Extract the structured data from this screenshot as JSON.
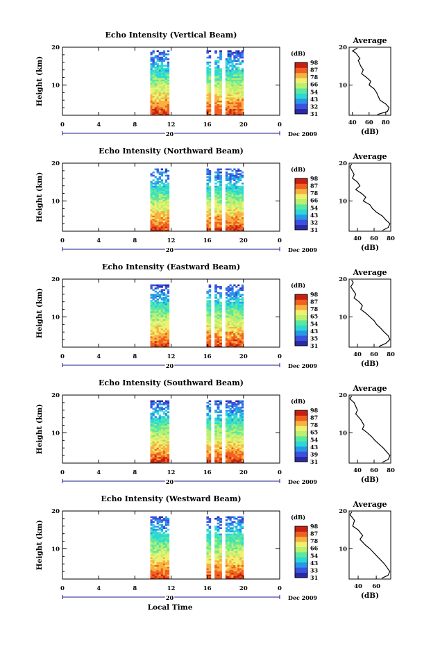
{
  "figure": {
    "xlabel": "Local Time",
    "date_label": "Dec 2009",
    "colorbar_title": "(dB)",
    "colorbar_ticks": [
      "31",
      "32",
      "43",
      "54",
      "66",
      "78",
      "87",
      "98"
    ],
    "avg_title": "Average",
    "avg_xlabel": "(dB)",
    "ylabel": "Height (km)",
    "day_label": "20",
    "time_ticks": [
      "0",
      "4",
      "8",
      "12",
      "16",
      "20",
      "0"
    ],
    "height_ticks": [
      "20",
      "10"
    ],
    "colormap": [
      "#2a2aa6",
      "#3a52e0",
      "#2a96e8",
      "#2ad8d8",
      "#5ae8a0",
      "#b8f070",
      "#f0f070",
      "#f8b040",
      "#f06020",
      "#c82010"
    ]
  },
  "chart_data": [
    {
      "type": "heatmap",
      "title": "Echo Intensity (Vertical Beam)",
      "xlabel": "Local Time",
      "ylabel": "Height (km)",
      "xlim": [
        0,
        24
      ],
      "ylim": [
        2,
        20
      ],
      "data_segments_hours": [
        [
          9.7,
          11.8
        ],
        [
          15.9,
          16.4
        ],
        [
          16.8,
          17.6
        ],
        [
          18.0,
          20.0
        ]
      ],
      "colorbar": {
        "label": "(dB)",
        "ticks": [
          31,
          32,
          43,
          54,
          66,
          78,
          87,
          98
        ]
      },
      "average_profile": {
        "title": "Average",
        "xlabel": "(dB)",
        "xticks": [
          40,
          60,
          80
        ],
        "xlim": [
          36,
          86
        ],
        "points": [
          [
            46,
            19.8
          ],
          [
            40,
            19
          ],
          [
            44,
            18.5
          ],
          [
            49,
            17
          ],
          [
            47,
            16.5
          ],
          [
            50,
            15
          ],
          [
            53,
            14
          ],
          [
            51,
            13
          ],
          [
            57,
            12
          ],
          [
            62,
            11
          ],
          [
            60,
            10
          ],
          [
            66,
            9
          ],
          [
            69,
            8
          ],
          [
            73,
            6
          ],
          [
            80,
            5
          ],
          [
            84,
            4
          ],
          [
            82,
            3
          ],
          [
            70,
            2.2
          ]
        ]
      }
    },
    {
      "type": "heatmap",
      "title": "Echo Intensity (Northward Beam)",
      "xlabel": "Local Time",
      "ylabel": "Height (km)",
      "xlim": [
        0,
        24
      ],
      "ylim": [
        2,
        20
      ],
      "data_segments_hours": [
        [
          9.7,
          11.8
        ],
        [
          15.9,
          16.4
        ],
        [
          16.8,
          17.6
        ],
        [
          18.0,
          20.0
        ]
      ],
      "colorbar": {
        "label": "(dB)",
        "ticks": [
          31,
          32,
          43,
          54,
          66,
          78,
          87,
          98
        ]
      },
      "average_profile": {
        "title": "Average",
        "xlabel": "(dB)",
        "xticks": [
          40,
          60,
          80
        ],
        "xlim": [
          30,
          80
        ],
        "points": [
          [
            33,
            19.8
          ],
          [
            31,
            19
          ],
          [
            36,
            17
          ],
          [
            34,
            16
          ],
          [
            40,
            15
          ],
          [
            43,
            14
          ],
          [
            38,
            13
          ],
          [
            45,
            12
          ],
          [
            50,
            11
          ],
          [
            47,
            10
          ],
          [
            55,
            9
          ],
          [
            58,
            8
          ],
          [
            63,
            7
          ],
          [
            70,
            6
          ],
          [
            74,
            5
          ],
          [
            79,
            4
          ],
          [
            77,
            3
          ],
          [
            70,
            2.2
          ]
        ]
      }
    },
    {
      "type": "heatmap",
      "title": "Echo Intensity (Eastward Beam)",
      "xlabel": "Local Time",
      "ylabel": "Height (km)",
      "xlim": [
        0,
        24
      ],
      "ylim": [
        2,
        20
      ],
      "data_segments_hours": [
        [
          9.7,
          11.8
        ],
        [
          15.9,
          16.4
        ],
        [
          16.8,
          17.6
        ],
        [
          18.0,
          20.0
        ]
      ],
      "colorbar": {
        "label": "(dB)",
        "ticks": [
          31,
          35,
          43,
          54,
          65,
          78,
          87,
          98
        ]
      },
      "average_profile": {
        "title": "Average",
        "xlabel": "(dB)",
        "xticks": [
          40,
          60,
          80
        ],
        "xlim": [
          30,
          80
        ],
        "points": [
          [
            33,
            19.8
          ],
          [
            35,
            19
          ],
          [
            32,
            18
          ],
          [
            38,
            16
          ],
          [
            36,
            15
          ],
          [
            42,
            14
          ],
          [
            46,
            13
          ],
          [
            44,
            12
          ],
          [
            50,
            11
          ],
          [
            55,
            10
          ],
          [
            60,
            9
          ],
          [
            63,
            8
          ],
          [
            68,
            7
          ],
          [
            72,
            6
          ],
          [
            77,
            5
          ],
          [
            79,
            4
          ],
          [
            74,
            3
          ],
          [
            66,
            2.2
          ]
        ]
      }
    },
    {
      "type": "heatmap",
      "title": "Echo Intensity (Southward Beam)",
      "xlabel": "Local Time",
      "ylabel": "Height (km)",
      "xlim": [
        0,
        24
      ],
      "ylim": [
        2,
        20
      ],
      "data_segments_hours": [
        [
          9.7,
          11.8
        ],
        [
          15.9,
          16.4
        ],
        [
          16.8,
          17.6
        ],
        [
          18.0,
          20.0
        ]
      ],
      "colorbar": {
        "label": "(dB)",
        "ticks": [
          31,
          39,
          43,
          54,
          65,
          78,
          87,
          98
        ]
      },
      "average_profile": {
        "title": "Average",
        "xlabel": "(dB)",
        "xticks": [
          40,
          60,
          80
        ],
        "xlim": [
          30,
          80
        ],
        "points": [
          [
            33,
            19.8
          ],
          [
            31,
            19
          ],
          [
            36,
            18
          ],
          [
            40,
            16
          ],
          [
            38,
            15
          ],
          [
            44,
            13.5
          ],
          [
            48,
            12
          ],
          [
            46,
            11
          ],
          [
            52,
            10
          ],
          [
            57,
            9
          ],
          [
            61,
            8
          ],
          [
            66,
            7
          ],
          [
            71,
            6
          ],
          [
            75,
            5
          ],
          [
            79,
            4
          ],
          [
            77,
            3
          ],
          [
            70,
            2.2
          ]
        ]
      }
    },
    {
      "type": "heatmap",
      "title": "Echo Intensity (Westward Beam)",
      "xlabel": "Local Time",
      "ylabel": "Height (km)",
      "xlim": [
        0,
        24
      ],
      "ylim": [
        2,
        20
      ],
      "data_segments_hours": [
        [
          9.7,
          11.8
        ],
        [
          15.9,
          16.4
        ],
        [
          16.8,
          17.6
        ],
        [
          18.0,
          20.0
        ]
      ],
      "colorbar": {
        "label": "(dB)",
        "ticks": [
          31,
          33,
          43,
          54,
          66,
          78,
          87,
          98
        ]
      },
      "average_profile": {
        "title": "Average",
        "xlabel": "(dB)",
        "xticks": [
          40,
          60
        ],
        "xlim": [
          30,
          76
        ],
        "points": [
          [
            33,
            19.8
          ],
          [
            31,
            19
          ],
          [
            36,
            17.5
          ],
          [
            34,
            16
          ],
          [
            40,
            15
          ],
          [
            45,
            13.5
          ],
          [
            42,
            12.5
          ],
          [
            48,
            11
          ],
          [
            53,
            10
          ],
          [
            57,
            9
          ],
          [
            61,
            8
          ],
          [
            65,
            7
          ],
          [
            69,
            6
          ],
          [
            72,
            5
          ],
          [
            75,
            4
          ],
          [
            73,
            3
          ],
          [
            66,
            2.2
          ]
        ]
      }
    }
  ]
}
